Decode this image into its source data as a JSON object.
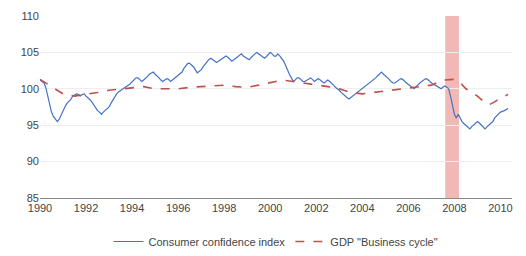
{
  "chart_data": {
    "type": "line",
    "xlim": [
      1990.0,
      2010.5
    ],
    "ylim": [
      85,
      110
    ],
    "xticks": [
      1990,
      1992,
      1994,
      1996,
      1998,
      2000,
      2002,
      2004,
      2006,
      2008,
      2010
    ],
    "yticks": [
      85,
      90,
      95,
      100,
      105,
      110
    ],
    "grid": true,
    "legend": "bottom",
    "shading": {
      "start": 2007.6,
      "end": 2008.2,
      "color": "#f2b8b5"
    },
    "series": [
      {
        "name": "Consumer confidence index",
        "color": "#4472C4",
        "line_style": "solid",
        "x": [
          1990.0,
          1990.08,
          1990.17,
          1990.25,
          1990.33,
          1990.42,
          1990.5,
          1990.58,
          1990.67,
          1990.75,
          1990.83,
          1990.92,
          1991.0,
          1991.08,
          1991.17,
          1991.25,
          1991.33,
          1991.42,
          1991.5,
          1991.58,
          1991.67,
          1991.75,
          1991.83,
          1991.92,
          1992.0,
          1992.08,
          1992.17,
          1992.25,
          1992.33,
          1992.42,
          1992.5,
          1992.58,
          1992.67,
          1992.75,
          1992.83,
          1992.92,
          1993.0,
          1993.08,
          1993.17,
          1993.25,
          1993.33,
          1993.42,
          1993.5,
          1993.58,
          1993.67,
          1993.75,
          1993.83,
          1993.92,
          1994.0,
          1994.08,
          1994.17,
          1994.25,
          1994.33,
          1994.42,
          1994.5,
          1994.58,
          1994.67,
          1994.75,
          1994.83,
          1994.92,
          1995.0,
          1995.08,
          1995.17,
          1995.25,
          1995.33,
          1995.42,
          1995.5,
          1995.58,
          1995.67,
          1995.75,
          1995.83,
          1995.92,
          1996.0,
          1996.08,
          1996.17,
          1996.25,
          1996.33,
          1996.42,
          1996.5,
          1996.58,
          1996.67,
          1996.75,
          1996.83,
          1996.92,
          1997.0,
          1997.08,
          1997.17,
          1997.25,
          1997.33,
          1997.42,
          1997.5,
          1997.58,
          1997.67,
          1997.75,
          1997.83,
          1997.92,
          1998.0,
          1998.08,
          1998.17,
          1998.25,
          1998.33,
          1998.42,
          1998.5,
          1998.58,
          1998.67,
          1998.75,
          1998.83,
          1998.92,
          1999.0,
          1999.08,
          1999.17,
          1999.25,
          1999.33,
          1999.42,
          1999.5,
          1999.58,
          1999.67,
          1999.75,
          1999.83,
          1999.92,
          2000.0,
          2000.08,
          2000.17,
          2000.25,
          2000.33,
          2000.42,
          2000.5,
          2000.58,
          2000.67,
          2000.75,
          2000.83,
          2000.92,
          2001.0,
          2001.08,
          2001.17,
          2001.25,
          2001.33,
          2001.42,
          2001.5,
          2001.58,
          2001.67,
          2001.75,
          2001.83,
          2001.92,
          2002.0,
          2002.08,
          2002.17,
          2002.25,
          2002.33,
          2002.42,
          2002.5,
          2002.58,
          2002.67,
          2002.75,
          2002.83,
          2002.92,
          2003.0,
          2003.08,
          2003.17,
          2003.25,
          2003.33,
          2003.42,
          2003.5,
          2003.58,
          2003.67,
          2003.75,
          2003.83,
          2003.92,
          2004.0,
          2004.08,
          2004.17,
          2004.25,
          2004.33,
          2004.42,
          2004.5,
          2004.58,
          2004.67,
          2004.75,
          2004.83,
          2004.92,
          2005.0,
          2005.08,
          2005.17,
          2005.25,
          2005.33,
          2005.42,
          2005.5,
          2005.58,
          2005.67,
          2005.75,
          2005.83,
          2005.92,
          2006.0,
          2006.08,
          2006.17,
          2006.25,
          2006.33,
          2006.42,
          2006.5,
          2006.58,
          2006.67,
          2006.75,
          2006.83,
          2006.92,
          2007.0,
          2007.08,
          2007.17,
          2007.25,
          2007.33,
          2007.42,
          2007.5,
          2007.58,
          2007.67,
          2007.75,
          2007.83,
          2007.92,
          2008.0,
          2008.08,
          2008.17,
          2008.25,
          2008.33,
          2008.42,
          2008.5,
          2008.58,
          2008.67,
          2008.75,
          2008.83,
          2008.92,
          2009.0,
          2009.08,
          2009.17,
          2009.25,
          2009.33,
          2009.42,
          2009.5,
          2009.58,
          2009.67,
          2009.75,
          2009.83,
          2009.92,
          2010.0,
          2010.17,
          2010.33
        ],
        "values": [
          101.2,
          101.0,
          100.8,
          100.2,
          99.0,
          97.8,
          96.8,
          96.2,
          95.8,
          95.5,
          95.8,
          96.5,
          97.0,
          97.5,
          98.0,
          98.3,
          98.5,
          99.0,
          99.2,
          99.3,
          99.2,
          99.0,
          99.2,
          99.3,
          99.0,
          98.8,
          98.5,
          98.2,
          97.8,
          97.3,
          97.0,
          96.8,
          96.5,
          96.8,
          97.0,
          97.3,
          97.5,
          98.0,
          98.5,
          99.0,
          99.3,
          99.6,
          99.8,
          100.0,
          100.2,
          100.3,
          100.5,
          100.7,
          101.0,
          101.2,
          101.5,
          101.5,
          101.3,
          101.0,
          101.2,
          101.4,
          101.7,
          102.0,
          102.2,
          102.3,
          102.0,
          101.8,
          101.5,
          101.2,
          101.0,
          101.2,
          101.4,
          101.3,
          101.0,
          101.2,
          101.4,
          101.6,
          101.8,
          102.0,
          102.3,
          102.8,
          103.2,
          103.5,
          103.5,
          103.3,
          103.0,
          102.6,
          102.2,
          102.4,
          102.6,
          103.0,
          103.4,
          103.8,
          104.0,
          104.2,
          104.0,
          103.8,
          103.6,
          103.8,
          104.0,
          104.2,
          104.3,
          104.5,
          104.3,
          104.0,
          103.8,
          104.0,
          104.2,
          104.4,
          104.6,
          104.8,
          104.5,
          104.3,
          104.2,
          104.0,
          104.3,
          104.6,
          104.8,
          105.0,
          104.8,
          104.6,
          104.4,
          104.2,
          104.4,
          104.7,
          105.0,
          104.8,
          104.5,
          104.5,
          104.8,
          104.5,
          104.2,
          103.8,
          103.2,
          102.5,
          102.0,
          101.5,
          101.0,
          101.2,
          101.5,
          101.5,
          101.2,
          101.0,
          101.0,
          101.2,
          101.4,
          101.5,
          101.3,
          101.0,
          101.2,
          101.4,
          101.2,
          101.0,
          100.8,
          101.0,
          101.2,
          101.0,
          100.8,
          100.5,
          100.2,
          100.0,
          99.8,
          99.5,
          99.2,
          99.0,
          98.8,
          98.6,
          98.8,
          99.0,
          99.2,
          99.4,
          99.6,
          99.8,
          100.0,
          100.2,
          100.4,
          100.6,
          100.8,
          101.0,
          101.3,
          101.5,
          101.8,
          102.0,
          102.3,
          102.0,
          101.8,
          101.5,
          101.3,
          101.0,
          100.8,
          100.8,
          101.0,
          101.2,
          101.4,
          101.3,
          101.0,
          100.8,
          100.6,
          100.4,
          100.2,
          100.0,
          100.3,
          100.5,
          100.8,
          101.0,
          101.2,
          101.4,
          101.3,
          101.0,
          100.8,
          100.6,
          100.5,
          100.3,
          100.2,
          100.0,
          100.2,
          100.4,
          100.2,
          100.0,
          99.0,
          97.5,
          96.5,
          96.0,
          96.5,
          96.0,
          95.5,
          95.2,
          95.0,
          94.8,
          94.5,
          94.8,
          95.0,
          95.3,
          95.5,
          95.3,
          95.0,
          94.8,
          94.5,
          94.8,
          95.0,
          95.3,
          95.5,
          96.0,
          96.3,
          96.5,
          96.8,
          97.0,
          97.3
        ]
      },
      {
        "name": "GDP \"Business cycle\"",
        "color": "#C0504D",
        "line_style": "dash",
        "x": [
          1990.0,
          1990.5,
          1991.0,
          1991.5,
          1992.0,
          1992.5,
          1993.0,
          1993.5,
          1994.0,
          1994.5,
          1995.0,
          1995.5,
          1996.0,
          1996.5,
          1997.0,
          1997.5,
          1998.0,
          1998.5,
          1999.0,
          1999.5,
          2000.0,
          2000.5,
          2001.0,
          2001.5,
          2002.0,
          2002.5,
          2003.0,
          2003.5,
          2004.0,
          2004.5,
          2005.0,
          2005.5,
          2006.0,
          2006.5,
          2007.0,
          2007.5,
          2008.0,
          2008.2,
          2008.5,
          2008.75,
          2009.0,
          2009.25,
          2009.5,
          2009.75,
          2010.0,
          2010.33
        ],
        "values": [
          101.3,
          100.3,
          99.3,
          99.0,
          99.2,
          99.5,
          99.8,
          100.0,
          100.2,
          100.3,
          100.0,
          100.0,
          100.0,
          100.2,
          100.3,
          100.5,
          100.5,
          100.3,
          100.2,
          100.5,
          100.8,
          101.2,
          101.0,
          100.8,
          100.5,
          100.3,
          100.0,
          99.5,
          99.3,
          99.5,
          99.8,
          100.0,
          100.2,
          100.3,
          100.5,
          101.2,
          101.3,
          101.0,
          100.0,
          99.5,
          99.0,
          98.3,
          97.8,
          98.2,
          98.8,
          99.2
        ]
      }
    ]
  }
}
